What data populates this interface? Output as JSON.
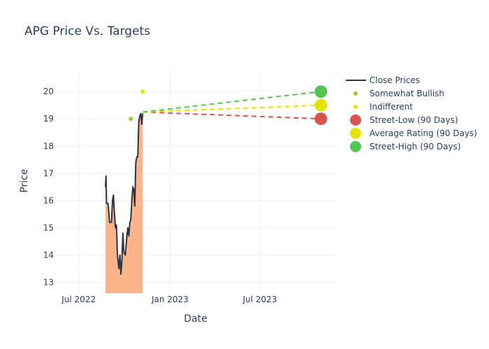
{
  "chart_data": {
    "type": "line",
    "title": "APG Price Vs. Targets",
    "xlabel": "Date",
    "ylabel": "Price",
    "x_range": [
      "2022-05-16",
      "2023-11-30"
    ],
    "ylim": [
      12.6,
      20.8
    ],
    "x_ticks": [
      {
        "date": "2022-07-01",
        "label": "Jul 2022"
      },
      {
        "date": "2023-01-01",
        "label": "Jan 2023"
      },
      {
        "date": "2023-07-01",
        "label": "Jul 2023"
      }
    ],
    "y_ticks": [
      13,
      14,
      15,
      16,
      17,
      18,
      19,
      20
    ],
    "grid": true,
    "legend_position": "top-right",
    "close_prices": {
      "name": "Close Prices",
      "color": "#2e3440",
      "fill_color": "#fdb48a",
      "points": [
        [
          "2022-08-24",
          16.5
        ],
        [
          "2022-08-25",
          16.9
        ],
        [
          "2022-08-26",
          15.9
        ],
        [
          "2022-08-29",
          15.9
        ],
        [
          "2022-08-31",
          15.5
        ],
        [
          "2022-09-01",
          15.2
        ],
        [
          "2022-09-05",
          15.2
        ],
        [
          "2022-09-07",
          16.0
        ],
        [
          "2022-09-09",
          16.2
        ],
        [
          "2022-09-11",
          15.5
        ],
        [
          "2022-09-13",
          15.0
        ],
        [
          "2022-09-15",
          15.1
        ],
        [
          "2022-09-17",
          14.0
        ],
        [
          "2022-09-20",
          13.5
        ],
        [
          "2022-09-22",
          14.0
        ],
        [
          "2022-09-24",
          13.3
        ],
        [
          "2022-09-26",
          13.8
        ],
        [
          "2022-09-28",
          14.8
        ],
        [
          "2022-09-30",
          14.1
        ],
        [
          "2022-10-03",
          14.0
        ],
        [
          "2022-10-06",
          14.7
        ],
        [
          "2022-10-08",
          15.0
        ],
        [
          "2022-10-10",
          14.7
        ],
        [
          "2022-10-12",
          15.2
        ],
        [
          "2022-10-14",
          15.3
        ],
        [
          "2022-10-16",
          16.0
        ],
        [
          "2022-10-18",
          16.5
        ],
        [
          "2022-10-20",
          16.4
        ],
        [
          "2022-10-22",
          15.8
        ],
        [
          "2022-10-24",
          17.4
        ],
        [
          "2022-10-26",
          17.6
        ],
        [
          "2022-10-28",
          17.6
        ],
        [
          "2022-10-30",
          18.9
        ],
        [
          "2022-11-01",
          19.1
        ],
        [
          "2022-11-03",
          19.2
        ],
        [
          "2022-11-05",
          18.8
        ],
        [
          "2022-11-07",
          19.2
        ]
      ]
    },
    "analyst_ratings": [
      {
        "name": "Somewhat Bullish",
        "color": "#9acd32",
        "date": "2022-10-14",
        "value": 19.0
      },
      {
        "name": "Indifferent",
        "color": "#e3e300",
        "date": "2022-11-07",
        "value": 20.0
      }
    ],
    "targets": {
      "start_date": "2022-11-07",
      "start_value": 19.25,
      "end_date": "2023-11-01",
      "series": [
        {
          "name": "Street-Low (90 Days)",
          "color": "#d9534f",
          "value": 19.0
        },
        {
          "name": "Average Rating (90 Days)",
          "color": "#e3e300",
          "value": 19.5
        },
        {
          "name": "Street-High (90 Days)",
          "color": "#54c454",
          "value": 20.0
        }
      ]
    }
  }
}
